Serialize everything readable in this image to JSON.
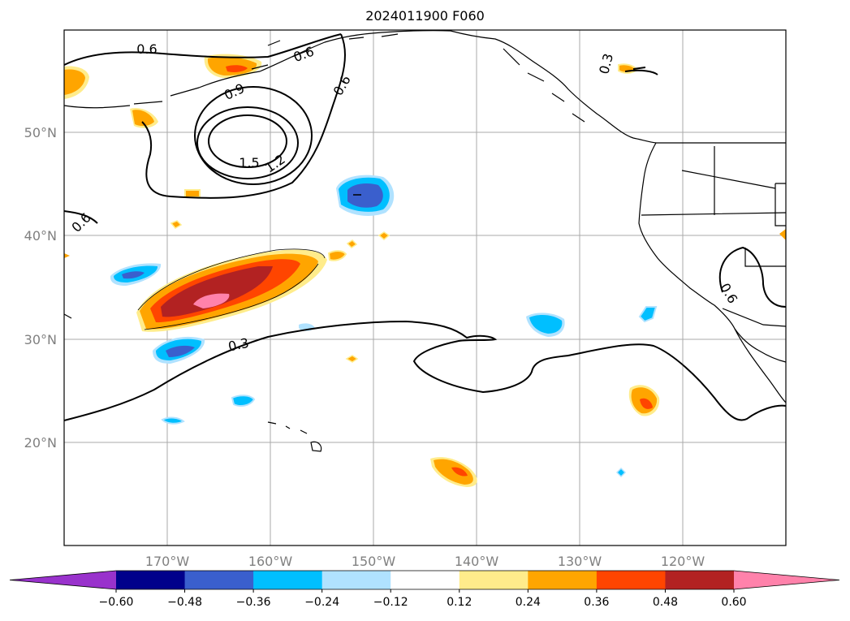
{
  "title": "2024011900 F060",
  "map": {
    "projection": "PlateCarree",
    "lon_range": [
      -180,
      -110
    ],
    "lat_range": [
      10,
      60
    ],
    "gridlines": true,
    "lat_ticks": [
      "50°N",
      "40°N",
      "30°N",
      "20°N"
    ],
    "lon_ticks": [
      "170°W",
      "160°W",
      "150°W",
      "140°W",
      "130°W",
      "120°W"
    ]
  },
  "contour_labels": [
    "0.6",
    "0.6",
    "0.9",
    "0.6",
    "0.3",
    "1.5",
    "1.2",
    "0.6",
    "0.6",
    "0.3"
  ],
  "colorbar": {
    "tick_labels": [
      "−0.60",
      "−0.48",
      "−0.36",
      "−0.24",
      "−0.12",
      "0.12",
      "0.24",
      "0.36",
      "0.48",
      "0.60"
    ],
    "levels": [
      -0.6,
      -0.48,
      -0.36,
      -0.24,
      -0.12,
      0.12,
      0.24,
      0.36,
      0.48,
      0.6
    ],
    "colors": [
      "#9932cc",
      "#00008b",
      "#3a5fcd",
      "#00bfff",
      "#b0e2ff",
      "#ffffff",
      "#ffec8b",
      "#ffa500",
      "#ff4500",
      "#b22222",
      "#ff82ab"
    ],
    "extend": "both"
  }
}
